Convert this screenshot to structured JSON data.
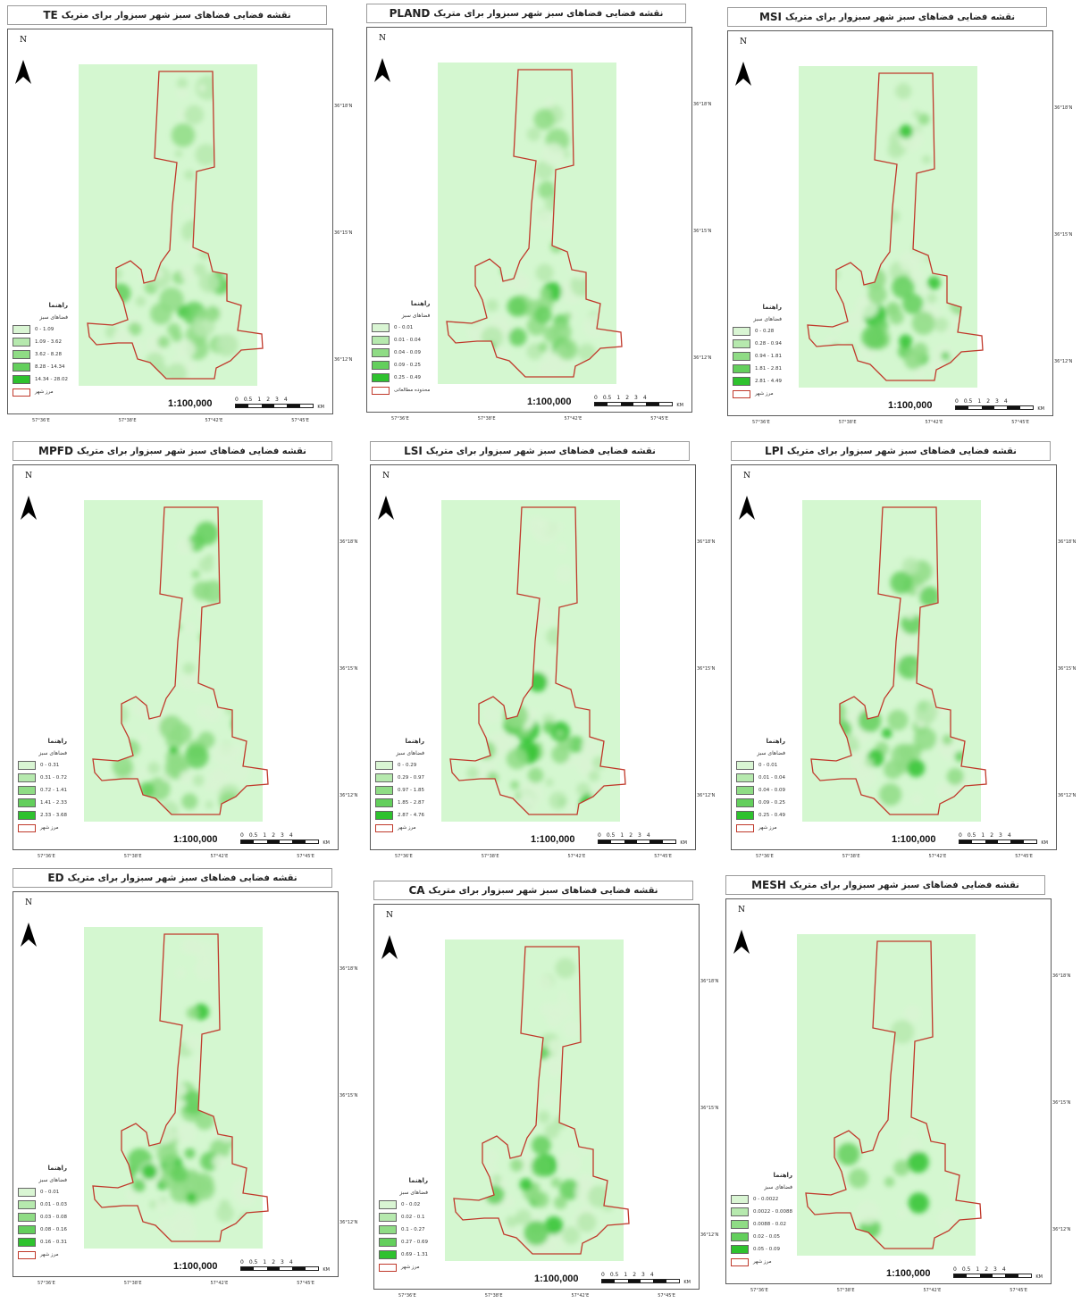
{
  "title_prefix": "نقشه فضایی فضاهای سبز شهر سبزوار برای متریک",
  "panels": [
    {
      "metric": "TE",
      "legend_title": "راهنما",
      "legend_subtitle": "فضاهای سبز",
      "classes": [
        "0 - 1.09",
        "1.09 - 3.62",
        "3.62 - 8.28",
        "8.28 - 14.34",
        "14.34 - 28.02"
      ],
      "boundary_label": "مرز شهر"
    },
    {
      "metric": "PLAND",
      "legend_title": "راهنما",
      "legend_subtitle": "فضاهای سبز",
      "classes": [
        "0 - 0.01",
        "0.01 - 0.04",
        "0.04 - 0.09",
        "0.09 - 0.25",
        "0.25 - 0.49"
      ],
      "boundary_label": "محدوده مطالعاتی"
    },
    {
      "metric": "MSI",
      "legend_title": "راهنما",
      "legend_subtitle": "فضاهای سبز",
      "classes": [
        "0 - 0.28",
        "0.28 - 0.94",
        "0.94 - 1.81",
        "1.81 - 2.81",
        "2.81 - 4.49"
      ],
      "boundary_label": "مرز شهر"
    },
    {
      "metric": "MPFD",
      "legend_title": "راهنما",
      "legend_subtitle": "فضاهای سبز",
      "classes": [
        "0 - 0.31",
        "0.31 - 0.72",
        "0.72 - 1.41",
        "1.41 - 2.33",
        "2.33 - 3.68"
      ],
      "boundary_label": "مرز شهر"
    },
    {
      "metric": "LSI",
      "legend_title": "راهنما",
      "legend_subtitle": "فضاهای سبز",
      "classes": [
        "0 - 0.29",
        "0.29 - 0.97",
        "0.97 - 1.85",
        "1.85 - 2.87",
        "2.87 - 4.76"
      ],
      "boundary_label": "مرز شهر"
    },
    {
      "metric": "LPI",
      "legend_title": "راهنما",
      "legend_subtitle": "فضاهای سبز",
      "classes": [
        "0 - 0.01",
        "0.01 - 0.04",
        "0.04 - 0.09",
        "0.09 - 0.25",
        "0.25 - 0.49"
      ],
      "boundary_label": "مرز شهر"
    },
    {
      "metric": "ED",
      "legend_title": "راهنما",
      "legend_subtitle": "فضاهای سبز",
      "classes": [
        "0 - 0.01",
        "0.01 - 0.03",
        "0.03 - 0.08",
        "0.08 - 0.16",
        "0.16 - 0.31"
      ],
      "boundary_label": "مرز شهر"
    },
    {
      "metric": "CA",
      "legend_title": "راهنما",
      "legend_subtitle": "فضاهای سبز",
      "classes": [
        "0 - 0.02",
        "0.02 - 0.1",
        "0.1 - 0.27",
        "0.27 - 0.69",
        "0.69 - 1.31"
      ],
      "boundary_label": "مرز شهر"
    },
    {
      "metric": "MESH",
      "legend_title": "راهنما",
      "legend_subtitle": "فضاهای سبز",
      "classes": [
        "0 - 0.0022",
        "0.0022 - 0.0088",
        "0.0088 - 0.02",
        "0.02 - 0.05",
        "0.05 - 0.09"
      ],
      "boundary_label": "مرز شهر"
    }
  ],
  "scale_text": "1:100,000",
  "scale_numbers": [
    "0",
    "0.5",
    "1",
    "2",
    "3",
    "4"
  ],
  "scale_unit": "KM",
  "north_label": "N",
  "x_ticks": [
    "57°36'E",
    "57°38'E",
    "57°42'E",
    "57°45'E"
  ],
  "y_ticks": [
    "36°18'N",
    "36°15'N",
    "36°12'N"
  ],
  "class_colors": [
    "#d9f5d3",
    "#b6e9ae",
    "#8fdc85",
    "#63cf5c",
    "#2ec22e"
  ],
  "background_color": "#d4f7d0",
  "boundary_color": "#c0392b"
}
